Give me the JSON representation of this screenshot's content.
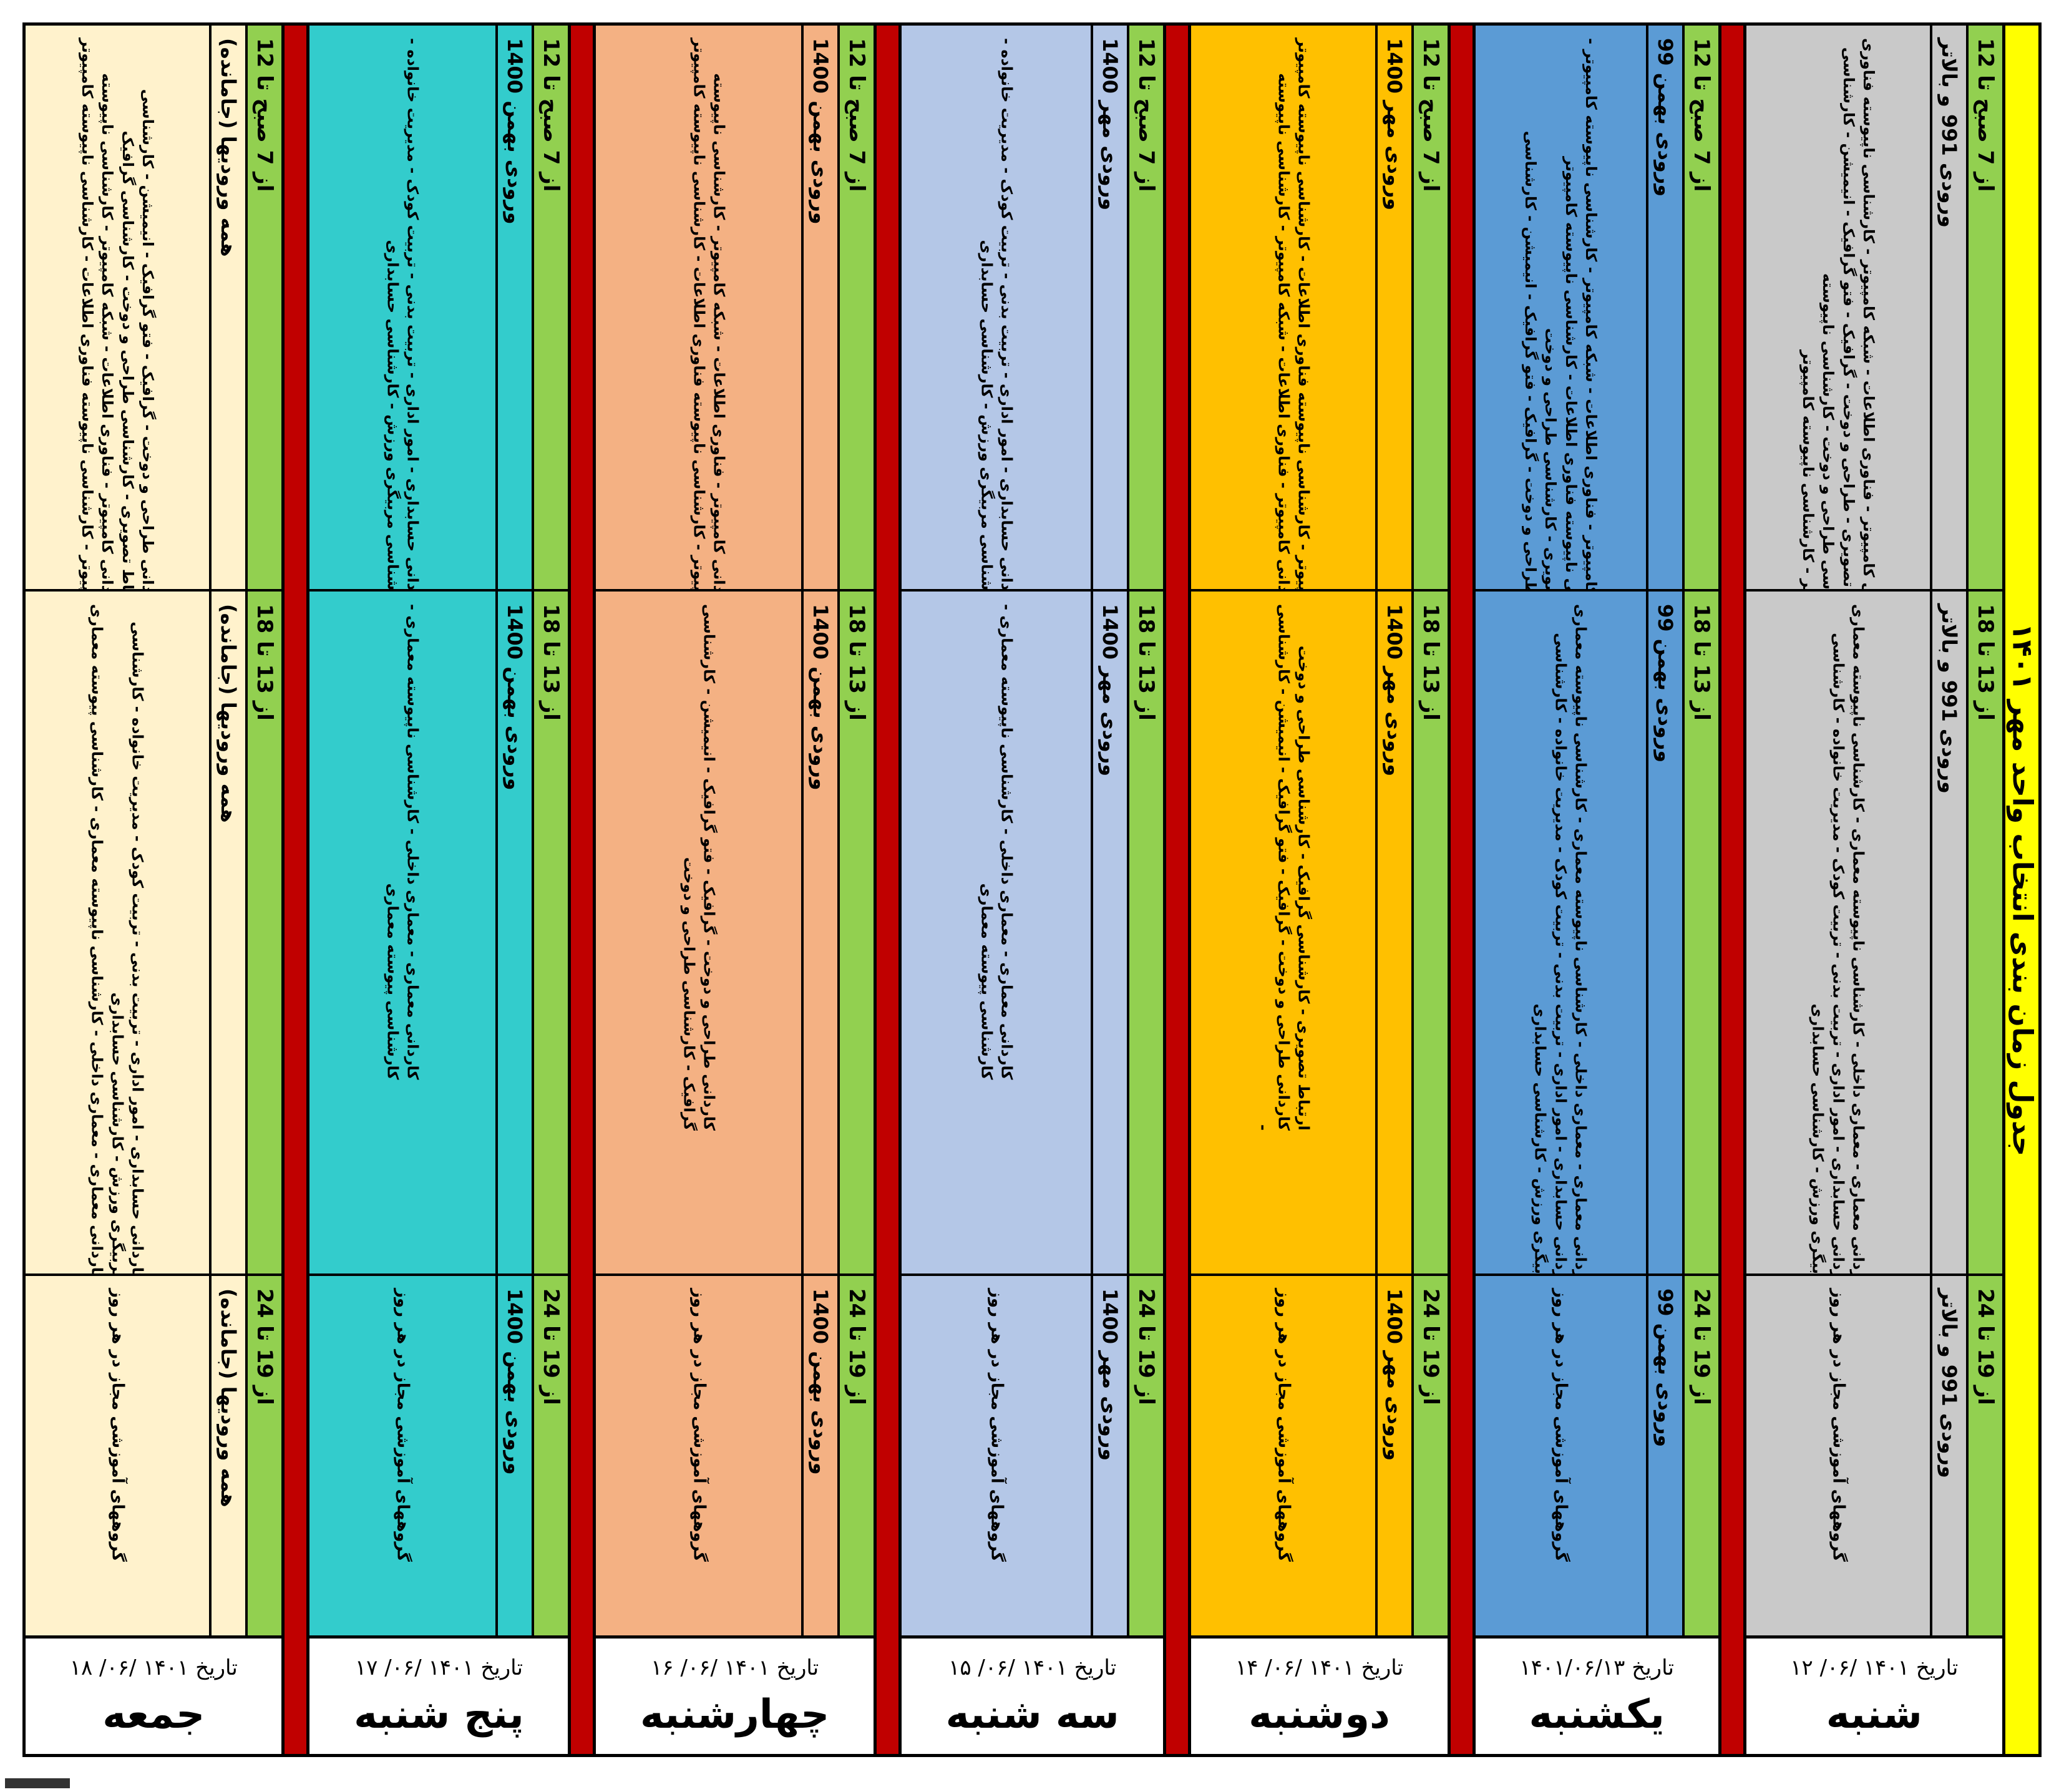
{
  "title": "جدول زمان بندی انتخاب واحد مهر ۱۴۰۱",
  "date_prefix": "تاریخ",
  "days": [
    {
      "key": "sat",
      "name": "شنبه",
      "date": "۱۴۰۱ /۰۶/ ۱۲",
      "slots": [
        {
          "time": "از 7 صبح تا 12",
          "cohort": "ورودی 991 و بالاتر",
          "groups": [
            "کاردانی کامپیوتر - فناوری اطلاعات - شبکه کامپیوتر - کارشناسی ناپیوسته فناوری",
            "ارتباط تصویری - طراحی و دوخت - گرافیک - فتو گرافیک - انیمیشن - کارشناسی",
            "کارشناسی طراحی و دوخت - کارشناسی ناپیوسته",
            "کامپیوتر - کارشناسی ناپیوسته کامپیوتر"
          ]
        },
        {
          "time": "از 13 تا 18",
          "cohort": "ورودی 991 و بالاتر",
          "groups": [
            "کاردانی معماری - معماری داخلی - کارشناسی ناپیوسته معماری - کارشناسی ناپیوسته معماری",
            "کاردانی حسابداری - امور اداری - تربیت بدنی - تربیت کودک - مدیریت خانواده - کارشناسی",
            "مربیگری ورزش - کارشناسی حسابداری"
          ]
        },
        {
          "time": "از 19 تا 24",
          "cohort": "ورودی 991 و بالاتر",
          "groups": [
            "گروههای آموزشی مجاز در هر روز"
          ]
        }
      ]
    },
    {
      "key": "sun",
      "name": "یکشنبه",
      "date": "۱۴۰۱/۰۶/۱۳",
      "slots": [
        {
          "time": "از 7 صبح تا 12",
          "cohort": "ورودی بهمن 99",
          "groups": [
            "کاردانی کامپیوتر - فناوری اطلاعات - شبکه کامپیوتر - کارشناسی ناپیوسته کامپیوتر -",
            "کارشناسی ناپیوسته فناوری اطلاعات - کارشناسی ناپیوسته کامپیوتر",
            "ارتباط تصویری - کارشناسی طراحی و دوخت",
            "کاردانی طراحی و دوخت - گرافیک - فتو گرافیک - انیمیشن - کارشناسی"
          ]
        },
        {
          "time": "از 13 تا 18",
          "cohort": "ورودی بهمن 99",
          "groups": [
            "کاردانی معماری - معماری داخلی - کارشناسی ناپیوسته معماری - کارشناسی ناپیوسته معماری",
            "کاردانی حسابداری - امور اداری - تربیت بدنی - تربیت کودک - مدیریت خانواده - کارشناسی",
            "مربیگری ورزش - کارشناسی حسابداری"
          ]
        },
        {
          "time": "از 19 تا 24",
          "cohort": "ورودی بهمن 99",
          "groups": [
            "گروههای آموزشی مجاز در هر روز"
          ]
        }
      ]
    },
    {
      "key": "mon",
      "name": "دوشنبه",
      "date": "۱۴۰۱ /۰۶/ ۱۴",
      "slots": [
        {
          "time": "از 7 صبح تا 12",
          "cohort": "ورودی مهر 1400",
          "groups": [
            "کامپیوتر - کارشناسی ناپیوسته فناوری اطلاعات - کارشناسی ناپیوسته کامپیوتر",
            "کاردانی کامپیوتر - فناوری اطلاعات - شبکه کامپیوتر - کارشناسی ناپیوسته",
            "-"
          ]
        },
        {
          "time": "از 13 تا 18",
          "cohort": "ورودی مهر 1400",
          "groups": [
            "ارتباط تصویری - کارشناسی گرافیک - کارشناسی طراحی و دوخت",
            "کاردانی طراحی و دوخت - گرافیک - فتو گرافیک - انیمیشن - کارشناسی",
            "-"
          ]
        },
        {
          "time": "از 19 تا 24",
          "cohort": "ورودی مهر 1400",
          "groups": [
            "گروههای آموزشی مجاز در هر روز"
          ]
        }
      ]
    },
    {
      "key": "tue",
      "name": "سه شنبه",
      "date": "۱۴۰۱ /۰۶/ ۱۵",
      "slots": [
        {
          "time": "از 7 صبح تا 12",
          "cohort": "ورودی مهر 1400",
          "groups": [
            "کاردانی حسابداری - امور اداری - تربیت بدنی - تربیت کودک - مدیریت خانواده -",
            "کارشناسی مربیگری ورزش - کارشناسی حسابداری"
          ]
        },
        {
          "time": "از 13 تا 18",
          "cohort": "ورودی مهر 1400",
          "groups": [
            "کاردانی معماری - معماری داخلی - کارشناسی ناپیوسته معماری -",
            "کارشناسی پیوسته معماری"
          ]
        },
        {
          "time": "از 19 تا 24",
          "cohort": "ورودی مهر 1400",
          "groups": [
            "گروههای آموزشی مجاز در هر روز"
          ]
        }
      ]
    },
    {
      "key": "wed",
      "name": "چهارشنبه",
      "date": "۱۴۰۱ /۰۶/ ۱۶",
      "slots": [
        {
          "time": "از 7 صبح تا 12",
          "cohort": "ورودی بهمن 1400",
          "groups": [
            "کاردانی کامپیوتر - فناوری اطلاعات - شبکه کامپیوتر - کارشناسی ناپیوسته",
            "کامپیوتر - کارشناسی ناپیوسته فناوری اطلاعات - کارشناسی ناپیوسته کامپیوتر",
            "-"
          ]
        },
        {
          "time": "از 13 تا 18",
          "cohort": "ورودی بهمن 1400",
          "groups": [
            "کاردانی طراحی و دوخت - گرافیک - فتو گرافیک - انیمیشن - کارشناسی",
            "گرافیک - کارشناسی طراحی و دوخت"
          ]
        },
        {
          "time": "از 19 تا 24",
          "cohort": "ورودی بهمن 1400",
          "groups": [
            "گروههای آموزشی مجاز در هر روز"
          ]
        }
      ]
    },
    {
      "key": "thu",
      "name": "پنج شنبه",
      "date": "۱۴۰۱ /۰۶/ ۱۷",
      "slots": [
        {
          "time": "از 7 صبح تا 12",
          "cohort": "ورودی بهمن 1400",
          "groups": [
            "کاردانی حسابداری - امور اداری - تربیت بدنی - تربیت کودک - مدیریت خانواده -",
            "کارشناسی مربیگری ورزش - کارشناسی حسابداری"
          ]
        },
        {
          "time": "از 13 تا 18",
          "cohort": "ورودی بهمن 1400",
          "groups": [
            "کاردانی معماری - معماری داخلی - کارشناسی ناپیوسته معماری -",
            "کارشناسی پیوسته معماری"
          ]
        },
        {
          "time": "از 19 تا 24",
          "cohort": "ورودی بهمن 1400",
          "groups": [
            "گروههای آموزشی مجاز در هر روز"
          ]
        }
      ]
    },
    {
      "key": "fri",
      "name": "جمعه",
      "date": "۱۴۰۱ /۰۶/ ۱۸",
      "slots": [
        {
          "time": "از 7 صبح تا 12",
          "cohort": "همه ورودیها (جامانده)",
          "groups": [
            "کاردانی طراحی و دوخت - گرافیک - فتو گرافیک - انیمیشن - کارشناسی",
            "ارتباط تصویری - کارشناسی طراحی و دوخت - کارشناسی گرافیک",
            "کاردانی کامپیوتر - فناوری اطلاعات - شبکه کامپیوتر - کارشناسی ناپیوسته",
            "کامپیوتر - کارشناسی ناپیوسته فناوری اطلاعات - کارشناسی ناپیوسته کامپیوتر"
          ]
        },
        {
          "time": "از 13 تا 18",
          "cohort": "همه ورودیها (جامانده)",
          "groups": [
            "کاردانی حسابداری - امور اداری - تربیت بدنی - تربیت کودک - مدیریت خانواده - کارشناسی",
            "مربیگری ورزش - کارشناسی حسابداری",
            "کاردانی معماری - معماری داخلی - کارشناسی ناپیوسته معماری - کارشناسی پیوسته معماری"
          ]
        },
        {
          "time": "از 19 تا 24",
          "cohort": "همه ورودیها (جامانده)",
          "groups": [
            "گروههای آموزشی مجاز در هر روز"
          ]
        }
      ]
    }
  ]
}
